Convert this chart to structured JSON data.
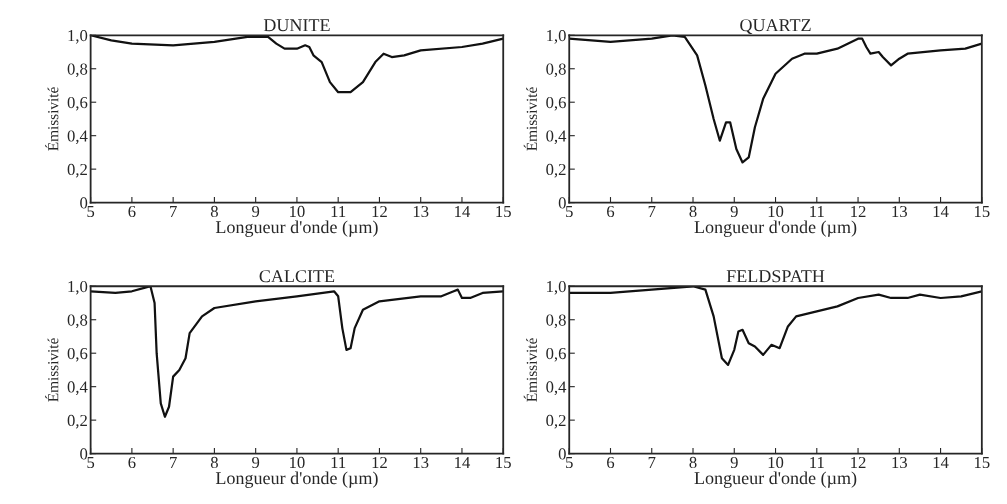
{
  "chart_data": [
    {
      "type": "line",
      "title": "DUNITE",
      "xlabel": "Longueur d'onde (µm)",
      "ylabel": "Émissivité",
      "xlim": [
        5,
        15
      ],
      "ylim": [
        0,
        1.0
      ],
      "xticks": [
        5,
        6,
        7,
        8,
        9,
        10,
        11,
        12,
        13,
        14,
        15
      ],
      "yticks": [
        0,
        {
          "value": 0.2,
          "label": "0,2"
        },
        {
          "value": 0.4,
          "label": "0,4"
        },
        {
          "value": 0.6,
          "label": "0,6"
        },
        {
          "value": 0.8,
          "label": "0,8"
        },
        {
          "value": 1.0,
          "label": "1,0"
        }
      ],
      "grid": false,
      "legend": false,
      "marker": "none",
      "line_style": "solid",
      "series": [
        {
          "color": "#111111",
          "x": [
            5,
            5.5,
            6,
            7,
            8,
            8.8,
            9.3,
            9.5,
            9.7,
            10,
            10.2,
            10.3,
            10.4,
            10.6,
            10.8,
            11,
            11.3,
            11.6,
            11.9,
            12.1,
            12.3,
            12.6,
            13,
            14,
            14.5,
            15
          ],
          "values": [
            1.0,
            0.97,
            0.95,
            0.94,
            0.96,
            0.99,
            0.99,
            0.95,
            0.92,
            0.92,
            0.94,
            0.93,
            0.88,
            0.84,
            0.72,
            0.66,
            0.66,
            0.72,
            0.84,
            0.89,
            0.87,
            0.88,
            0.91,
            0.93,
            0.95,
            0.98
          ]
        }
      ]
    },
    {
      "type": "line",
      "title": "QUARTZ",
      "xlabel": "Longueur d'onde (µm)",
      "ylabel": "Émissivité",
      "xlim": [
        5,
        15
      ],
      "ylim": [
        0,
        1.0
      ],
      "xticks": [
        5,
        6,
        7,
        8,
        9,
        10,
        11,
        12,
        13,
        14,
        15
      ],
      "yticks": [
        0,
        {
          "value": 0.2,
          "label": "0,2"
        },
        {
          "value": 0.4,
          "label": "0,4"
        },
        {
          "value": 0.6,
          "label": "0,6"
        },
        {
          "value": 0.8,
          "label": "0,8"
        },
        {
          "value": 1.0,
          "label": "1,0"
        }
      ],
      "grid": false,
      "legend": false,
      "marker": "none",
      "line_style": "solid",
      "series": [
        {
          "color": "#111111",
          "x": [
            5,
            6,
            7,
            7.5,
            7.8,
            8.1,
            8.3,
            8.5,
            8.65,
            8.8,
            8.9,
            9.05,
            9.2,
            9.35,
            9.5,
            9.7,
            10,
            10.4,
            10.7,
            11,
            11.5,
            12,
            12.1,
            12.2,
            12.3,
            12.5,
            12.6,
            12.8,
            13,
            13.2,
            14,
            14.6,
            15
          ],
          "values": [
            0.98,
            0.96,
            0.98,
            1.0,
            0.99,
            0.88,
            0.7,
            0.5,
            0.37,
            0.48,
            0.48,
            0.32,
            0.24,
            0.27,
            0.45,
            0.62,
            0.77,
            0.86,
            0.89,
            0.89,
            0.92,
            0.98,
            0.98,
            0.93,
            0.89,
            0.9,
            0.87,
            0.82,
            0.86,
            0.89,
            0.91,
            0.92,
            0.95
          ]
        }
      ]
    },
    {
      "type": "line",
      "title": "CALCITE",
      "xlabel": "Longueur d'onde (µm)",
      "ylabel": "Émissivité",
      "xlim": [
        5,
        15
      ],
      "ylim": [
        0,
        1.0
      ],
      "xticks": [
        5,
        6,
        7,
        8,
        9,
        10,
        11,
        12,
        13,
        14,
        15
      ],
      "yticks": [
        0,
        {
          "value": 0.2,
          "label": "0,2"
        },
        {
          "value": 0.4,
          "label": "0,4"
        },
        {
          "value": 0.6,
          "label": "0,6"
        },
        {
          "value": 0.8,
          "label": "0,8"
        },
        {
          "value": 1.0,
          "label": "1,0"
        }
      ],
      "grid": false,
      "legend": false,
      "marker": "none",
      "line_style": "solid",
      "series": [
        {
          "color": "#111111",
          "x": [
            5,
            5.6,
            6,
            6.3,
            6.45,
            6.55,
            6.6,
            6.7,
            6.8,
            6.9,
            7,
            7.15,
            7.3,
            7.4,
            7.7,
            8,
            9,
            10,
            10.9,
            11,
            11.1,
            11.2,
            11.3,
            11.4,
            11.6,
            12,
            13,
            13.5,
            13.8,
            13.9,
            14,
            14.2,
            14.5,
            15
          ],
          "values": [
            0.97,
            0.96,
            0.97,
            0.99,
            1.0,
            0.9,
            0.6,
            0.3,
            0.22,
            0.28,
            0.46,
            0.5,
            0.57,
            0.72,
            0.82,
            0.87,
            0.91,
            0.94,
            0.97,
            0.94,
            0.75,
            0.62,
            0.63,
            0.75,
            0.86,
            0.91,
            0.94,
            0.94,
            0.97,
            0.98,
            0.93,
            0.93,
            0.96,
            0.97
          ]
        }
      ]
    },
    {
      "type": "line",
      "title": "FELDSPATH",
      "xlabel": "Longueur d'onde (µm)",
      "ylabel": "Émissivité",
      "xlim": [
        5,
        15
      ],
      "ylim": [
        0,
        1.0
      ],
      "xticks": [
        5,
        6,
        7,
        8,
        9,
        10,
        11,
        12,
        13,
        14,
        15
      ],
      "yticks": [
        0,
        {
          "value": 0.2,
          "label": "0,2"
        },
        {
          "value": 0.4,
          "label": "0,4"
        },
        {
          "value": 0.6,
          "label": "0,6"
        },
        {
          "value": 0.8,
          "label": "0,8"
        },
        {
          "value": 1.0,
          "label": "1,0"
        }
      ],
      "grid": false,
      "legend": false,
      "marker": "none",
      "line_style": "solid",
      "series": [
        {
          "color": "#111111",
          "x": [
            5,
            6,
            7,
            8,
            8.3,
            8.5,
            8.7,
            8.85,
            9,
            9.1,
            9.2,
            9.35,
            9.5,
            9.7,
            9.9,
            10.1,
            10.3,
            10.5,
            11,
            11.5,
            12,
            12.5,
            12.8,
            13.2,
            13.5,
            14,
            14.5,
            15
          ],
          "values": [
            0.96,
            0.96,
            0.98,
            1.0,
            0.98,
            0.82,
            0.57,
            0.53,
            0.62,
            0.73,
            0.74,
            0.66,
            0.64,
            0.59,
            0.65,
            0.63,
            0.76,
            0.82,
            0.85,
            0.88,
            0.93,
            0.95,
            0.93,
            0.93,
            0.95,
            0.93,
            0.94,
            0.97
          ]
        }
      ]
    }
  ]
}
